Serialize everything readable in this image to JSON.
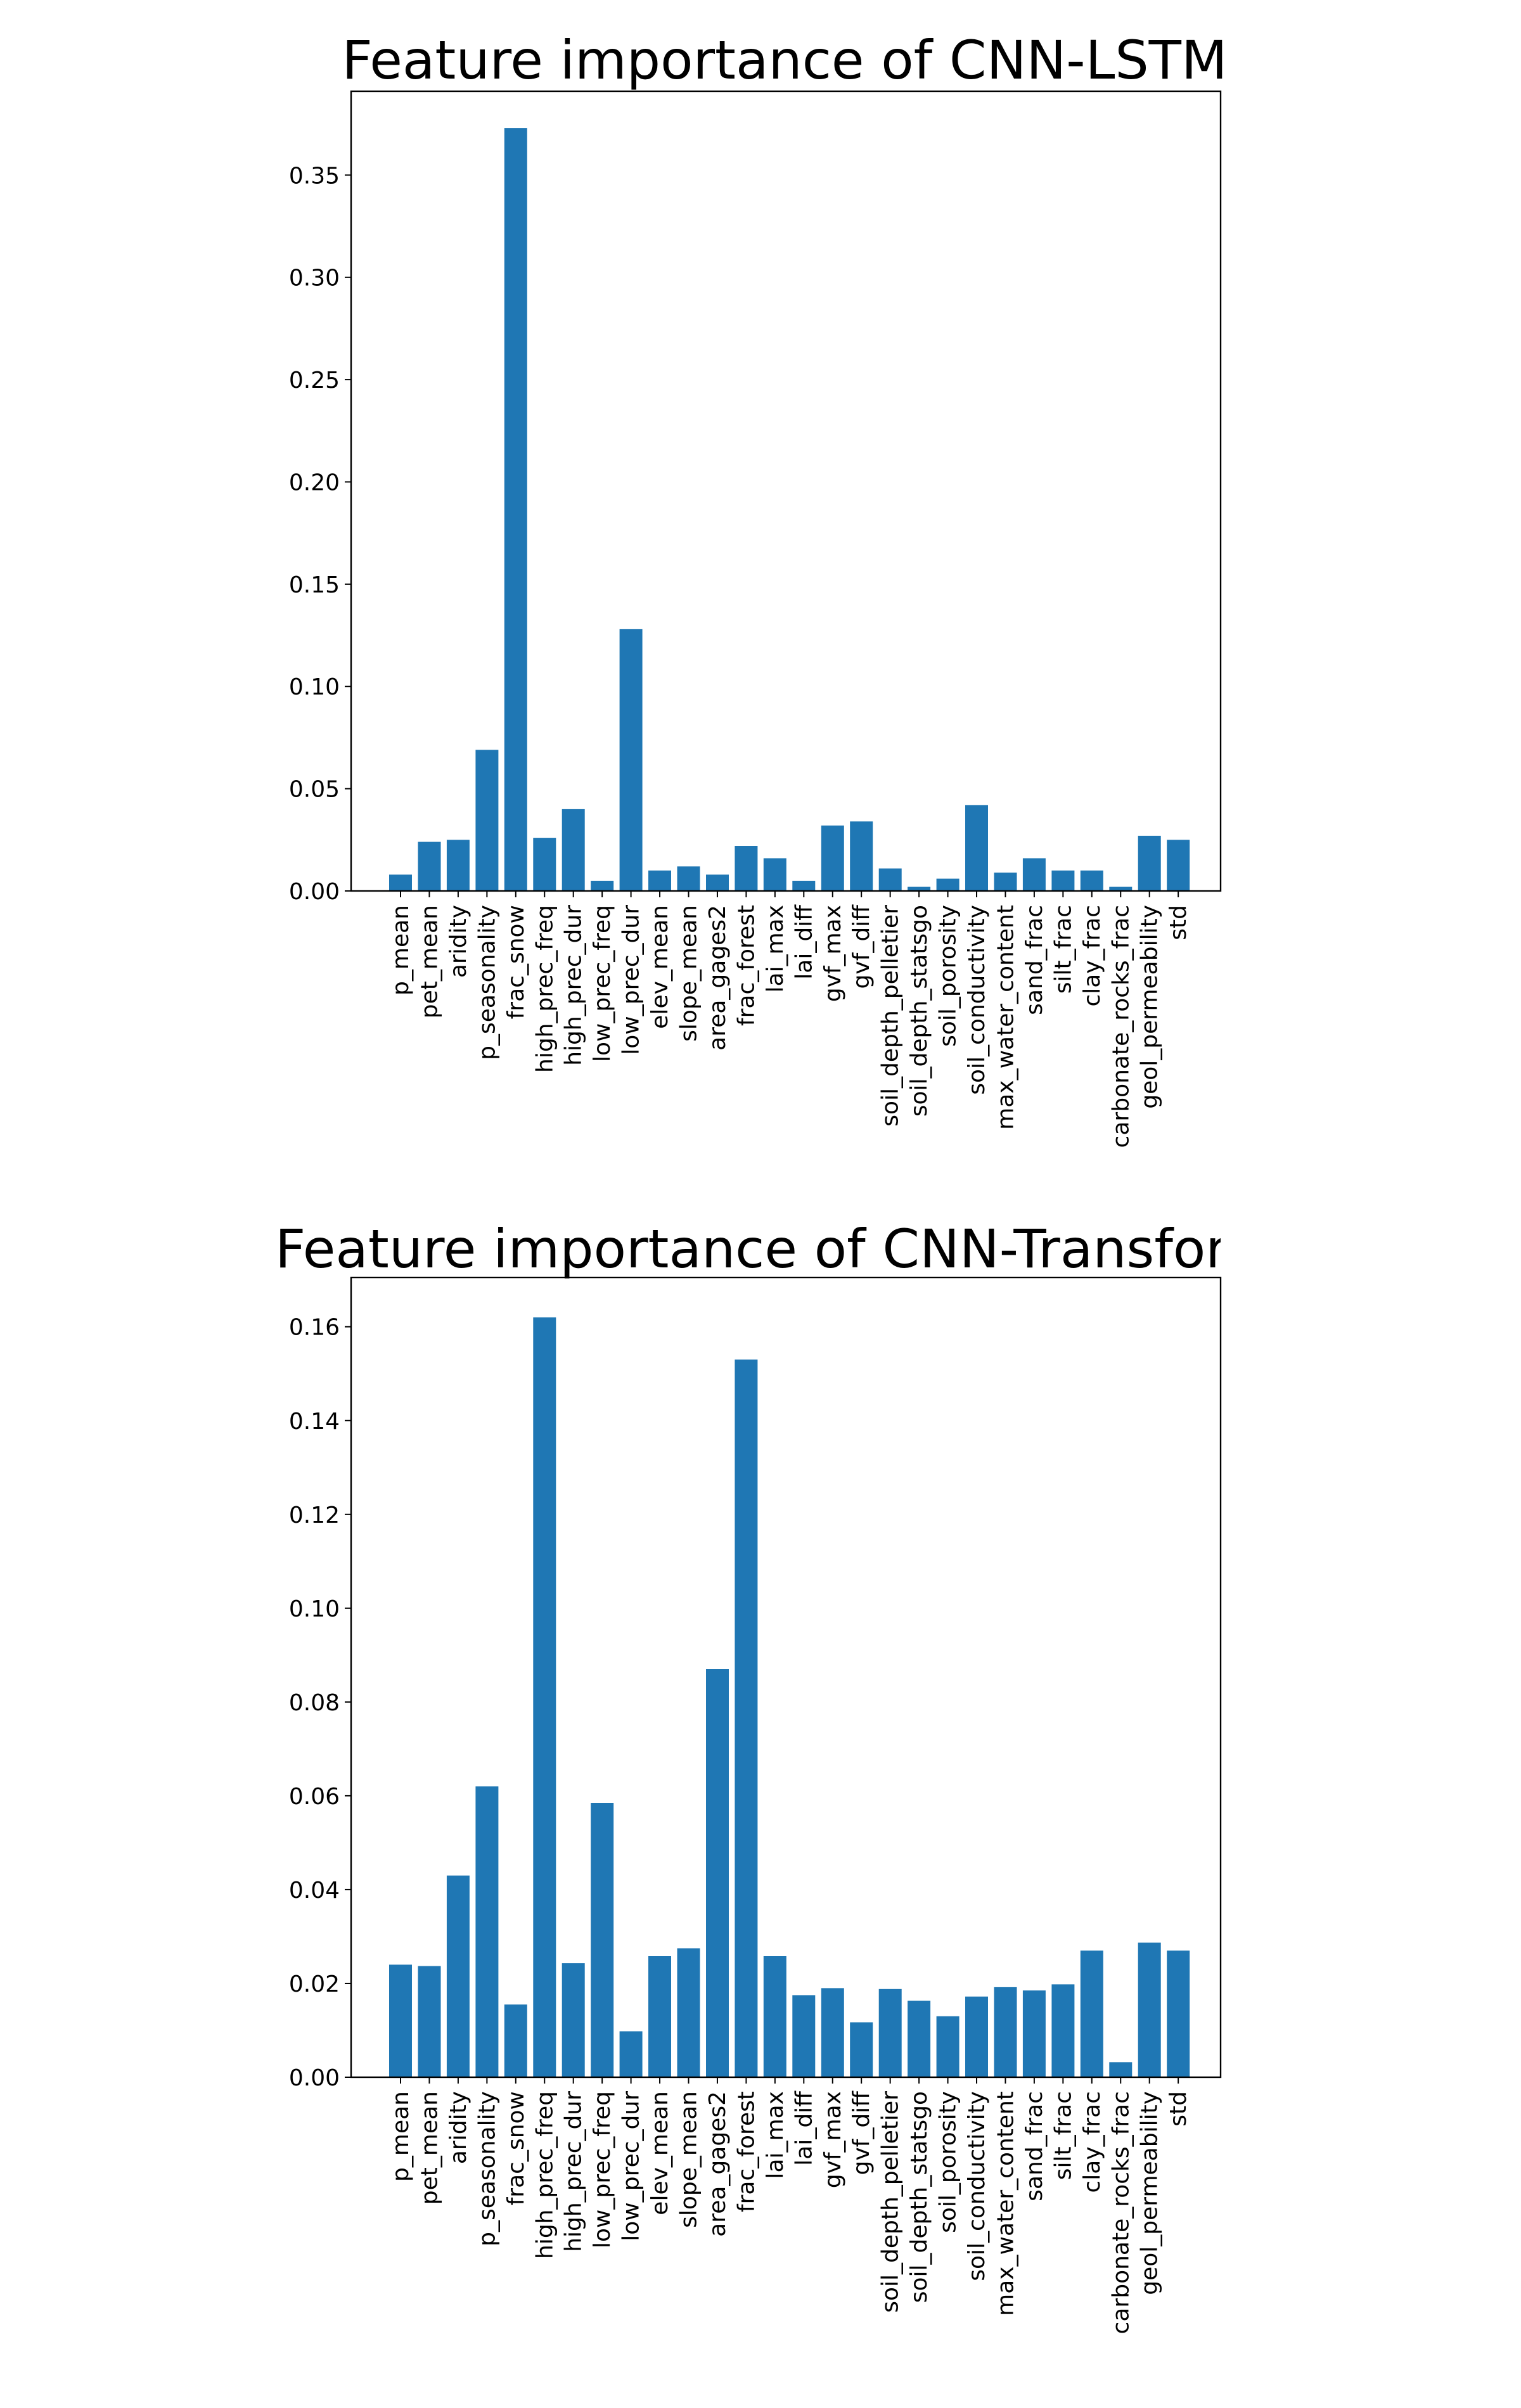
{
  "chart_data": [
    {
      "type": "bar",
      "title": "Feature importance of CNN-LSTM",
      "xlabel": "",
      "ylabel": "",
      "ylim": [
        0,
        0.391
      ],
      "yticks": [
        "0.00",
        "0.05",
        "0.10",
        "0.15",
        "0.20",
        "0.25",
        "0.30",
        "0.35"
      ],
      "grid": false,
      "color": "#1f77b4",
      "categories": [
        "p_mean",
        "pet_mean",
        "aridity",
        "p_seasonality",
        "frac_snow",
        "high_prec_freq",
        "high_prec_dur",
        "low_prec_freq",
        "low_prec_dur",
        "elev_mean",
        "slope_mean",
        "area_gages2",
        "frac_forest",
        "lai_max",
        "lai_diff",
        "gvf_max",
        "gvf_diff",
        "soil_depth_pelletier",
        "soil_depth_statsgo",
        "soil_porosity",
        "soil_conductivity",
        "max_water_content",
        "sand_frac",
        "silt_frac",
        "clay_frac",
        "carbonate_rocks_frac",
        "geol_permeability",
        "std"
      ],
      "values": [
        0.008,
        0.024,
        0.025,
        0.069,
        0.373,
        0.026,
        0.04,
        0.005,
        0.128,
        0.01,
        0.012,
        0.008,
        0.022,
        0.016,
        0.005,
        0.032,
        0.034,
        0.011,
        0.002,
        0.006,
        0.042,
        0.009,
        0.016,
        0.01,
        0.01,
        0.002,
        0.027,
        0.025
      ]
    },
    {
      "type": "bar",
      "title": "Feature importance of CNN-Transformer",
      "xlabel": "",
      "ylabel": "",
      "ylim": [
        0,
        0.1705
      ],
      "yticks": [
        "0.00",
        "0.02",
        "0.04",
        "0.06",
        "0.08",
        "0.10",
        "0.12",
        "0.14",
        "0.16"
      ],
      "grid": false,
      "color": "#1f77b4",
      "categories": [
        "p_mean",
        "pet_mean",
        "aridity",
        "p_seasonality",
        "frac_snow",
        "high_prec_freq",
        "high_prec_dur",
        "low_prec_freq",
        "low_prec_dur",
        "elev_mean",
        "slope_mean",
        "area_gages2",
        "frac_forest",
        "lai_max",
        "lai_diff",
        "gvf_max",
        "gvf_diff",
        "soil_depth_pelletier",
        "soil_depth_statsgo",
        "soil_porosity",
        "soil_conductivity",
        "max_water_content",
        "sand_frac",
        "silt_frac",
        "clay_frac",
        "carbonate_rocks_frac",
        "geol_permeability",
        "std"
      ],
      "values": [
        0.024,
        0.0237,
        0.043,
        0.062,
        0.0155,
        0.162,
        0.0243,
        0.0585,
        0.0098,
        0.0258,
        0.0275,
        0.087,
        0.153,
        0.0258,
        0.0175,
        0.019,
        0.0117,
        0.0188,
        0.0163,
        0.013,
        0.0172,
        0.0192,
        0.0185,
        0.0198,
        0.027,
        0.0032,
        0.0287,
        0.027
      ]
    }
  ]
}
